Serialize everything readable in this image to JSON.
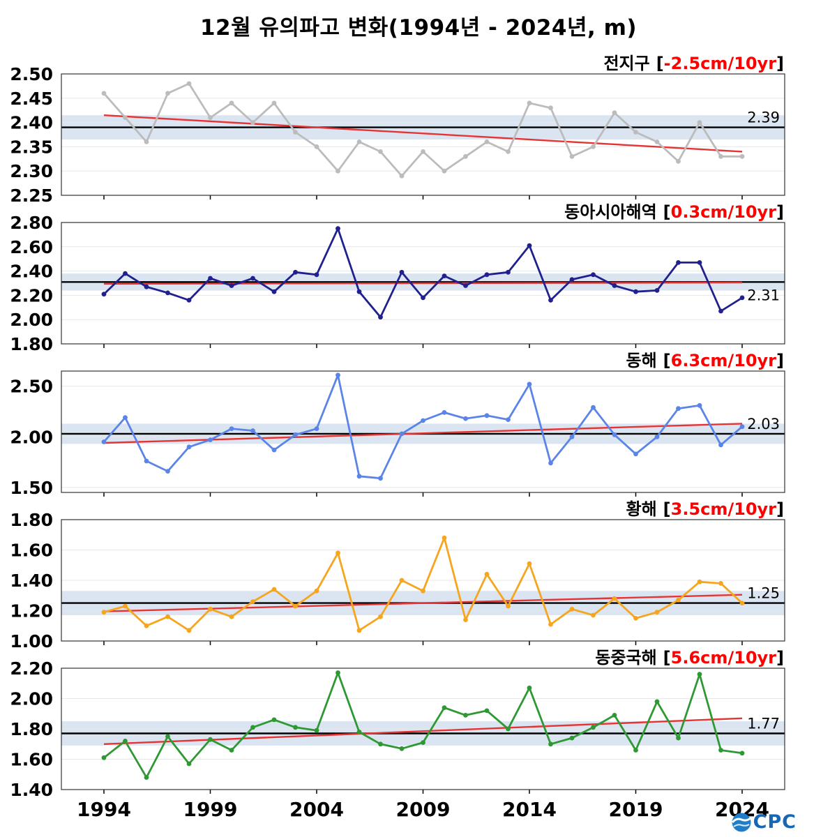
{
  "title": "12월 유의파고 변화(1994년 - 2024년, m)",
  "labels": {
    "bracket_open": "[",
    "bracket_close": "]"
  },
  "logo": {
    "text": "CPC",
    "full_name": "OCPC"
  },
  "years": [
    1994,
    1995,
    1996,
    1997,
    1998,
    1999,
    2000,
    2001,
    2002,
    2003,
    2004,
    2005,
    2006,
    2007,
    2008,
    2009,
    2010,
    2011,
    2012,
    2013,
    2014,
    2015,
    2016,
    2017,
    2018,
    2019,
    2020,
    2021,
    2022,
    2023,
    2024
  ],
  "x_axis": {
    "range": [
      1992,
      2026
    ],
    "tick_years": [
      1994,
      1999,
      2004,
      2009,
      2014,
      2019,
      2024
    ],
    "tick_labels": [
      "1994",
      "1999",
      "2004",
      "2009",
      "2014",
      "2019",
      "2024"
    ]
  },
  "colors": {
    "trend_line": "#e63333",
    "trend_text": "#ff0000",
    "mean_line": "#000000",
    "band": "#dbe5f1",
    "grid": "#e7e7e7",
    "border": "#333333"
  },
  "chart_data": [
    {
      "type": "line",
      "region": "전지구",
      "trend_label": "-2.5cm/10yr",
      "mean": 2.39,
      "mean_label": "2.39",
      "label_side": "above",
      "line_color": "#bcbcbc",
      "ylim": [
        2.25,
        2.5
      ],
      "yticks": [
        2.25,
        2.3,
        2.35,
        2.4,
        2.45,
        2.5
      ],
      "band": [
        2.365,
        2.415
      ],
      "trend_start": 2.415,
      "trend_end": 2.34,
      "values": [
        2.46,
        2.41,
        2.36,
        2.46,
        2.48,
        2.41,
        2.44,
        2.4,
        2.44,
        2.38,
        2.35,
        2.3,
        2.36,
        2.34,
        2.29,
        2.34,
        2.3,
        2.33,
        2.36,
        2.34,
        2.44,
        2.43,
        2.33,
        2.35,
        2.42,
        2.38,
        2.36,
        2.32,
        2.4,
        2.33,
        2.33
      ]
    },
    {
      "type": "line",
      "region": "동아시아해역",
      "trend_label": "0.3cm/10yr",
      "mean": 2.31,
      "mean_label": "2.31",
      "label_side": "below",
      "line_color": "#20208f",
      "ylim": [
        1.8,
        2.8
      ],
      "yticks": [
        1.8,
        2.0,
        2.2,
        2.4,
        2.6,
        2.8
      ],
      "band": [
        2.24,
        2.38
      ],
      "trend_start": 2.295,
      "trend_end": 2.305,
      "values": [
        2.21,
        2.38,
        2.27,
        2.22,
        2.16,
        2.34,
        2.28,
        2.34,
        2.23,
        2.39,
        2.37,
        2.75,
        2.23,
        2.02,
        2.39,
        2.18,
        2.36,
        2.28,
        2.37,
        2.39,
        2.61,
        2.16,
        2.33,
        2.37,
        2.28,
        2.23,
        2.24,
        2.47,
        2.47,
        2.07,
        2.18
      ]
    },
    {
      "type": "line",
      "region": "동해",
      "trend_label": "6.3cm/10yr",
      "mean": 2.03,
      "mean_label": "2.03",
      "label_side": "above",
      "line_color": "#5b84e8",
      "ylim": [
        1.45,
        2.65
      ],
      "yticks": [
        1.5,
        2.0,
        2.5
      ],
      "band": [
        1.93,
        2.13
      ],
      "trend_start": 1.94,
      "trend_end": 2.13,
      "values": [
        1.95,
        2.19,
        1.76,
        1.66,
        1.9,
        1.97,
        2.08,
        2.06,
        1.87,
        2.02,
        2.08,
        2.61,
        1.61,
        1.59,
        2.03,
        2.16,
        2.24,
        2.18,
        2.21,
        2.17,
        2.52,
        1.74,
        2.0,
        2.29,
        2.02,
        1.83,
        2.0,
        2.28,
        2.31,
        1.92,
        2.1
      ]
    },
    {
      "type": "line",
      "region": "황해",
      "trend_label": "3.5cm/10yr",
      "mean": 1.25,
      "mean_label": "1.25",
      "label_side": "above",
      "line_color": "#f6a51f",
      "ylim": [
        1.0,
        1.8
      ],
      "yticks": [
        1.0,
        1.2,
        1.4,
        1.6,
        1.8
      ],
      "band": [
        1.17,
        1.33
      ],
      "trend_start": 1.195,
      "trend_end": 1.305,
      "values": [
        1.19,
        1.23,
        1.1,
        1.16,
        1.07,
        1.21,
        1.16,
        1.26,
        1.34,
        1.23,
        1.33,
        1.58,
        1.07,
        1.16,
        1.4,
        1.33,
        1.68,
        1.14,
        1.44,
        1.23,
        1.51,
        1.11,
        1.21,
        1.17,
        1.28,
        1.15,
        1.19,
        1.27,
        1.39,
        1.38,
        1.25
      ]
    },
    {
      "type": "line",
      "region": "동중국해",
      "trend_label": "5.6cm/10yr",
      "mean": 1.77,
      "mean_label": "1.77",
      "label_side": "above",
      "line_color": "#2e9933",
      "ylim": [
        1.4,
        2.2
      ],
      "yticks": [
        1.4,
        1.6,
        1.8,
        2.0,
        2.2
      ],
      "band": [
        1.69,
        1.85
      ],
      "trend_start": 1.7,
      "trend_end": 1.87,
      "values": [
        1.61,
        1.72,
        1.48,
        1.75,
        1.57,
        1.73,
        1.66,
        1.81,
        1.86,
        1.81,
        1.79,
        2.17,
        1.78,
        1.7,
        1.67,
        1.71,
        1.94,
        1.89,
        1.92,
        1.8,
        2.07,
        1.7,
        1.74,
        1.81,
        1.89,
        1.66,
        1.98,
        1.74,
        2.16,
        1.66,
        1.64
      ]
    }
  ]
}
